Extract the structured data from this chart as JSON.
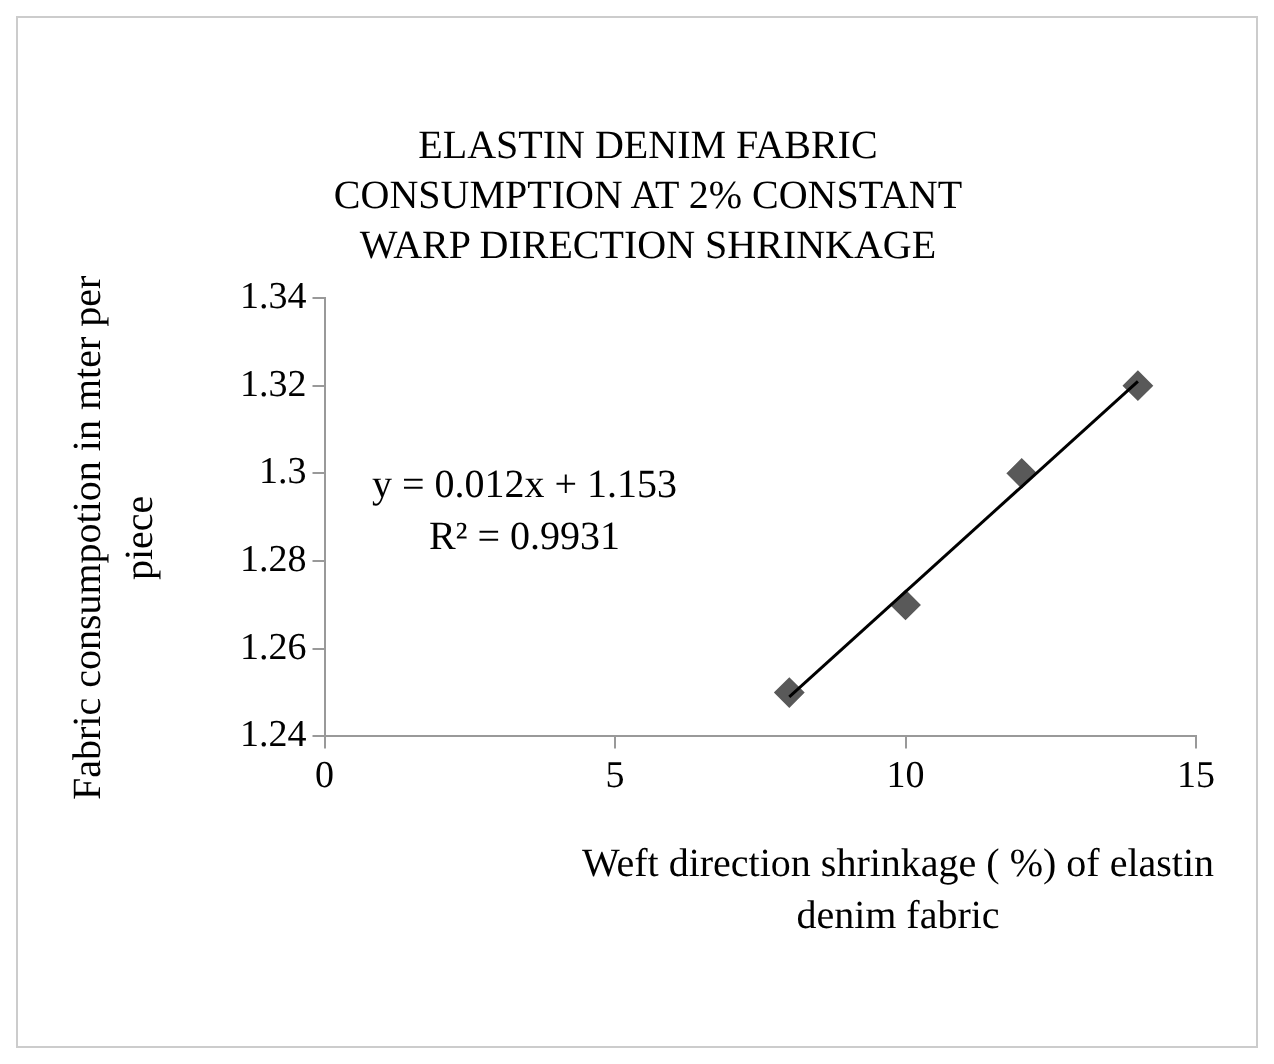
{
  "chart_data": {
    "type": "scatter",
    "title": "ELASTIN DENIM FABRIC CONSUMPTION AT 2% CONSTANT WARP DIRECTION SHRINKAGE",
    "xlabel": "Weft direction shrinkage ( %) of  elastin denim fabric",
    "ylabel": "Fabric consumpotion in mter per piece",
    "x": [
      8,
      10,
      12,
      14
    ],
    "series": [
      {
        "color": "#595959",
        "marker": "diamond",
        "values": [
          1.25,
          1.27,
          1.3,
          1.32
        ]
      },
      {
        "type": "line",
        "color": "#000000",
        "marker": "none",
        "x": [
          8,
          14
        ],
        "values": [
          1.249,
          1.321
        ]
      }
    ],
    "xlim": [
      0,
      15
    ],
    "xticks": [
      0,
      5,
      10,
      15
    ],
    "ylim": [
      1.24,
      1.34
    ],
    "yticks": [
      1.24,
      1.26,
      1.28,
      1.3,
      1.32,
      1.34
    ],
    "annotations": [
      "y = 0.012x + 1.153",
      "R² = 0.9931"
    ],
    "grid": false,
    "legend": false
  }
}
